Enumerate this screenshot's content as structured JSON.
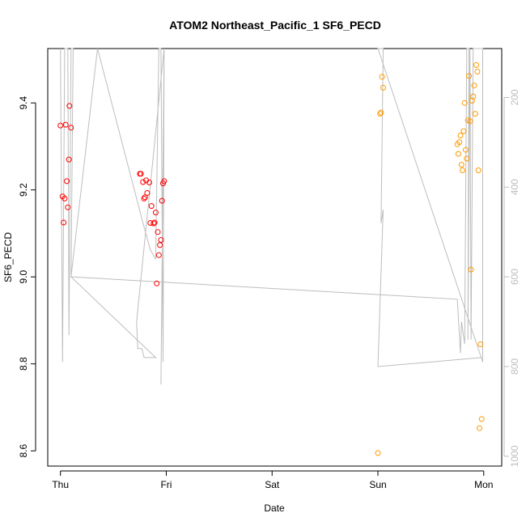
{
  "chart_data": {
    "type": "scatter",
    "title": "ATOM2 Northeast_Pacific_1 SF6_PECD",
    "xlabel": "Date",
    "ylabel": "SF6_PECD",
    "x_ticks": [
      "Thu",
      "Fri",
      "Sat",
      "Sun",
      "Mon"
    ],
    "y_ticks": [
      "8.6",
      "8.8",
      "9.0",
      "9.2",
      "9.4"
    ],
    "y_range": [
      8.565,
      9.525
    ],
    "x_range_days": [
      -0.12,
      4.17
    ],
    "right_axis": {
      "ticks": [
        "200",
        "400",
        "600",
        "800",
        "1000"
      ],
      "range": [
        91,
        1022
      ],
      "reversed": true,
      "color": "#bdbdbd"
    },
    "colors": {
      "series_1": "#ff0000",
      "series_2": "#ff9900",
      "profile_line": "#bdbdbd"
    },
    "series": [
      {
        "color": "#ff0000",
        "points": [
          [
            0.0,
            9.348
          ],
          [
            0.02,
            9.185
          ],
          [
            0.03,
            9.125
          ],
          [
            0.04,
            9.18
          ],
          [
            0.05,
            9.35
          ],
          [
            0.06,
            9.22
          ],
          [
            0.07,
            9.16
          ],
          [
            0.08,
            9.27
          ],
          [
            0.085,
            9.393
          ],
          [
            0.1,
            9.343
          ],
          [
            0.75,
            9.237
          ],
          [
            0.76,
            9.237
          ],
          [
            0.78,
            9.218
          ],
          [
            0.79,
            9.18
          ],
          [
            0.8,
            9.183
          ],
          [
            0.81,
            9.222
          ],
          [
            0.82,
            9.193
          ],
          [
            0.84,
            9.217
          ],
          [
            0.85,
            9.124
          ],
          [
            0.86,
            9.163
          ],
          [
            0.88,
            9.123
          ],
          [
            0.89,
            9.125
          ],
          [
            0.9,
            9.148
          ],
          [
            0.91,
            8.985
          ],
          [
            0.92,
            9.103
          ],
          [
            0.93,
            9.05
          ],
          [
            0.94,
            9.073
          ],
          [
            0.95,
            9.085
          ],
          [
            0.96,
            9.175
          ],
          [
            0.97,
            9.215
          ],
          [
            0.98,
            9.22
          ]
        ]
      },
      {
        "color": "#ff9900",
        "points": [
          [
            3.0,
            8.595
          ],
          [
            3.02,
            9.375
          ],
          [
            3.03,
            9.378
          ],
          [
            3.04,
            9.46
          ],
          [
            3.05,
            9.435
          ],
          [
            3.75,
            9.305
          ],
          [
            3.76,
            9.283
          ],
          [
            3.77,
            9.31
          ],
          [
            3.78,
            9.325
          ],
          [
            3.79,
            9.258
          ],
          [
            3.8,
            9.245
          ],
          [
            3.81,
            9.335
          ],
          [
            3.82,
            9.4
          ],
          [
            3.83,
            9.292
          ],
          [
            3.84,
            9.272
          ],
          [
            3.85,
            9.36
          ],
          [
            3.86,
            9.462
          ],
          [
            3.87,
            9.358
          ],
          [
            3.88,
            9.017
          ],
          [
            3.89,
            9.405
          ],
          [
            3.9,
            9.415
          ],
          [
            3.91,
            9.44
          ],
          [
            3.92,
            9.375
          ],
          [
            3.93,
            9.487
          ],
          [
            3.94,
            9.472
          ],
          [
            3.95,
            9.245
          ],
          [
            3.96,
            8.652
          ],
          [
            3.97,
            8.845
          ],
          [
            3.98,
            8.673
          ]
        ]
      }
    ],
    "profile_line": [
      [
        0.0,
        91
      ],
      [
        0.02,
        790
      ],
      [
        0.04,
        91
      ],
      [
        0.07,
        91
      ],
      [
        0.08,
        730
      ],
      [
        0.1,
        91
      ],
      [
        0.12,
        91
      ],
      [
        0.1,
        600
      ],
      [
        0.35,
        91
      ],
      [
        0.78,
        480
      ],
      [
        0.85,
        540
      ],
      [
        0.9,
        560
      ],
      [
        0.93,
        91
      ],
      [
        0.95,
        91
      ],
      [
        0.97,
        790
      ],
      [
        0.98,
        91
      ],
      [
        0.95,
        840
      ],
      [
        0.98,
        91
      ],
      [
        0.72,
        700
      ],
      [
        0.73,
        760
      ],
      [
        0.77,
        760
      ],
      [
        0.79,
        780
      ],
      [
        0.82,
        780
      ],
      [
        0.83,
        780
      ],
      [
        0.9,
        780
      ],
      [
        0.1,
        600
      ],
      [
        3.75,
        650
      ],
      [
        3.78,
        770
      ],
      [
        3.79,
        700
      ],
      [
        3.82,
        750
      ],
      [
        3.84,
        91
      ],
      [
        3.86,
        91
      ],
      [
        3.85,
        740
      ],
      [
        3.87,
        91
      ],
      [
        3.88,
        740
      ],
      [
        3.9,
        91
      ],
      [
        3.92,
        91
      ],
      [
        3.94,
        91
      ],
      [
        3.99,
        91
      ],
      [
        3.99,
        790
      ],
      [
        3.0,
        91
      ],
      [
        3.02,
        91
      ],
      [
        3.05,
        91
      ],
      [
        3.03,
        480
      ],
      [
        3.05,
        450
      ],
      [
        3.0,
        800
      ],
      [
        3.98,
        780
      ]
    ]
  }
}
